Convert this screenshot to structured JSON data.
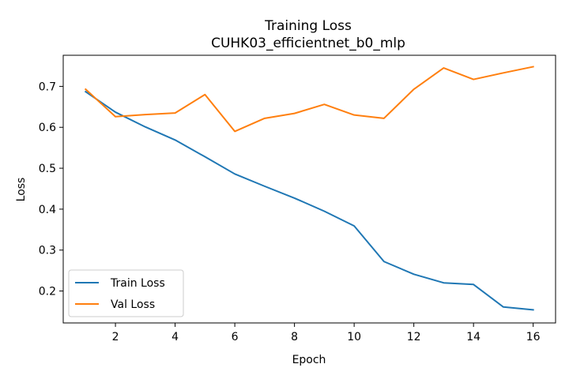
{
  "chart_data": {
    "type": "line",
    "title": "Training Loss",
    "subtitle": "CUHK03_efficientnet_b0_mlp",
    "xlabel": "Epoch",
    "ylabel": "Loss",
    "x": [
      1,
      2,
      3,
      4,
      5,
      6,
      7,
      8,
      9,
      10,
      11,
      12,
      13,
      14,
      15,
      16
    ],
    "xlim": [
      0.25,
      16.75
    ],
    "ylim": [
      0.122,
      0.776
    ],
    "xticks": [
      2,
      4,
      6,
      8,
      10,
      12,
      14,
      16
    ],
    "yticks": [
      0.2,
      0.3,
      0.4,
      0.5,
      0.6,
      0.7
    ],
    "xtick_labels": [
      "2",
      "4",
      "6",
      "8",
      "10",
      "12",
      "14",
      "16"
    ],
    "ytick_labels": [
      "0.2",
      "0.3",
      "0.4",
      "0.5",
      "0.6",
      "0.7"
    ],
    "grid": false,
    "legend_position": "lower-left",
    "series": [
      {
        "name": "Train Loss",
        "color": "#1f77b4",
        "values": [
          0.687,
          0.637,
          0.601,
          0.569,
          0.528,
          0.486,
          0.456,
          0.427,
          0.395,
          0.359,
          0.272,
          0.241,
          0.22,
          0.216,
          0.161,
          0.154
        ]
      },
      {
        "name": "Val Loss",
        "color": "#ff7f0e",
        "values": [
          0.693,
          0.626,
          0.631,
          0.635,
          0.68,
          0.59,
          0.622,
          0.634,
          0.656,
          0.63,
          0.622,
          0.693,
          0.745,
          0.717,
          0.733,
          0.748
        ]
      }
    ]
  }
}
